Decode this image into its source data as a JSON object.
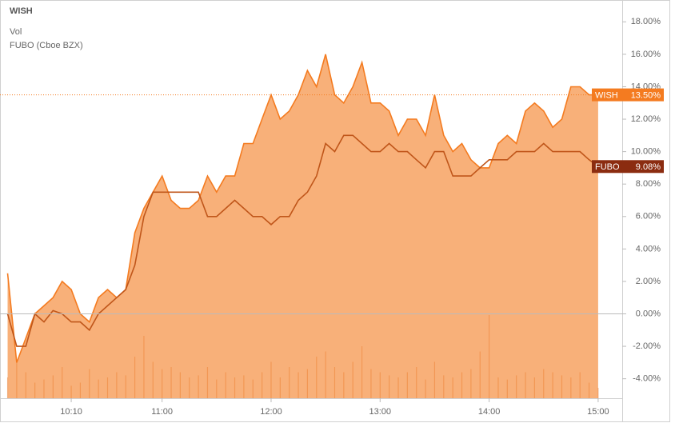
{
  "chart_data": {
    "type": "line",
    "legend": [
      "WISH",
      "Vol",
      "FUBO (Cboe BZX)"
    ],
    "x": [
      "09:35",
      "09:40",
      "09:45",
      "09:50",
      "09:55",
      "10:00",
      "10:05",
      "10:10",
      "10:15",
      "10:20",
      "10:25",
      "10:30",
      "10:35",
      "10:40",
      "10:45",
      "10:50",
      "10:55",
      "11:00",
      "11:05",
      "11:10",
      "11:15",
      "11:20",
      "11:25",
      "11:30",
      "11:35",
      "11:40",
      "11:45",
      "11:50",
      "11:55",
      "12:00",
      "12:05",
      "12:10",
      "12:15",
      "12:20",
      "12:25",
      "12:30",
      "12:35",
      "12:40",
      "12:45",
      "12:50",
      "12:55",
      "13:00",
      "13:05",
      "13:10",
      "13:15",
      "13:20",
      "13:25",
      "13:30",
      "13:35",
      "13:40",
      "13:45",
      "13:50",
      "13:55",
      "14:00",
      "14:05",
      "14:10",
      "14:15",
      "14:20",
      "14:25",
      "14:30",
      "14:35",
      "14:40",
      "14:45",
      "14:50",
      "14:55",
      "15:00"
    ],
    "xlim": [
      "09:33",
      "15:04"
    ],
    "xticks": [
      "10:10",
      "11:00",
      "12:00",
      "13:00",
      "14:00",
      "15:00"
    ],
    "ylim": [
      -5.2,
      19.1
    ],
    "yticks": [
      {
        "value": -4,
        "label": "-4.00%"
      },
      {
        "value": -2,
        "label": "-2.00%"
      },
      {
        "value": 0,
        "label": "0.00%"
      },
      {
        "value": 2,
        "label": "2.00%"
      },
      {
        "value": 4,
        "label": "4.00%"
      },
      {
        "value": 6,
        "label": "6.00%"
      },
      {
        "value": 8,
        "label": "8.00%"
      },
      {
        "value": 10,
        "label": "10.00%"
      },
      {
        "value": 12,
        "label": "12.00%"
      },
      {
        "value": 14,
        "label": "14.00%"
      },
      {
        "value": 16,
        "label": "16.00%"
      },
      {
        "value": 18,
        "label": "18.00%"
      }
    ],
    "series": [
      {
        "name": "WISH",
        "color": "#f47b20",
        "area": true,
        "values": [
          2.5,
          -3,
          -1.5,
          0,
          0.5,
          1,
          2,
          1.5,
          0,
          -0.5,
          1,
          1.5,
          1,
          1.5,
          5,
          6.5,
          7.5,
          8.5,
          7,
          6.5,
          6.5,
          7,
          8.5,
          7.5,
          8.5,
          8.5,
          10.5,
          10.5,
          12,
          13.5,
          12,
          12.5,
          13.5,
          15,
          14,
          16,
          13.5,
          13,
          14,
          15.5,
          13,
          13,
          12.5,
          11,
          12,
          12,
          11,
          13.5,
          11,
          10,
          10.5,
          9.5,
          9,
          9,
          10.5,
          11,
          10.5,
          12.5,
          13,
          12.5,
          11.5,
          12,
          14,
          14,
          13.5,
          13.5
        ]
      },
      {
        "name": "FUBO (Cboe BZX)",
        "color": "#c0561a",
        "area": false,
        "values": [
          0,
          -2,
          -2,
          0,
          -0.5,
          0.2,
          0,
          -0.5,
          -0.5,
          -1,
          0,
          0.5,
          1,
          1.5,
          3,
          6,
          7.5,
          7.5,
          7.5,
          7.5,
          7.5,
          7.5,
          6,
          6,
          6.5,
          7,
          6.5,
          6,
          6,
          5.5,
          6,
          6,
          7,
          7.5,
          8.5,
          10.5,
          10,
          11,
          11,
          10.5,
          10,
          10,
          10.5,
          10,
          10,
          9.5,
          9,
          10,
          10,
          8.5,
          8.5,
          8.5,
          9,
          9.5,
          9.5,
          9.5,
          10,
          10,
          10,
          10.5,
          10,
          10,
          10,
          10,
          9.5,
          9.08
        ]
      }
    ],
    "volume": {
      "color": "#e9a77a",
      "vlim": [
        0,
        100
      ],
      "values": [
        20,
        35,
        25,
        15,
        18,
        22,
        30,
        12,
        15,
        28,
        18,
        20,
        25,
        22,
        40,
        60,
        35,
        28,
        30,
        25,
        20,
        22,
        30,
        18,
        25,
        20,
        22,
        18,
        25,
        35,
        20,
        30,
        25,
        28,
        40,
        45,
        30,
        25,
        35,
        50,
        28,
        25,
        22,
        20,
        25,
        30,
        18,
        35,
        22,
        20,
        25,
        28,
        45,
        80,
        20,
        18,
        22,
        25,
        20,
        28,
        25,
        22,
        20,
        25,
        15,
        10
      ]
    },
    "badges": [
      {
        "label": "WISH",
        "value": 13.5,
        "value_label": "13.50%",
        "color": "#f47b20"
      },
      {
        "label": "FUBO",
        "value": 9.08,
        "value_label": "9.08%",
        "color": "#8b2c10"
      }
    ]
  }
}
